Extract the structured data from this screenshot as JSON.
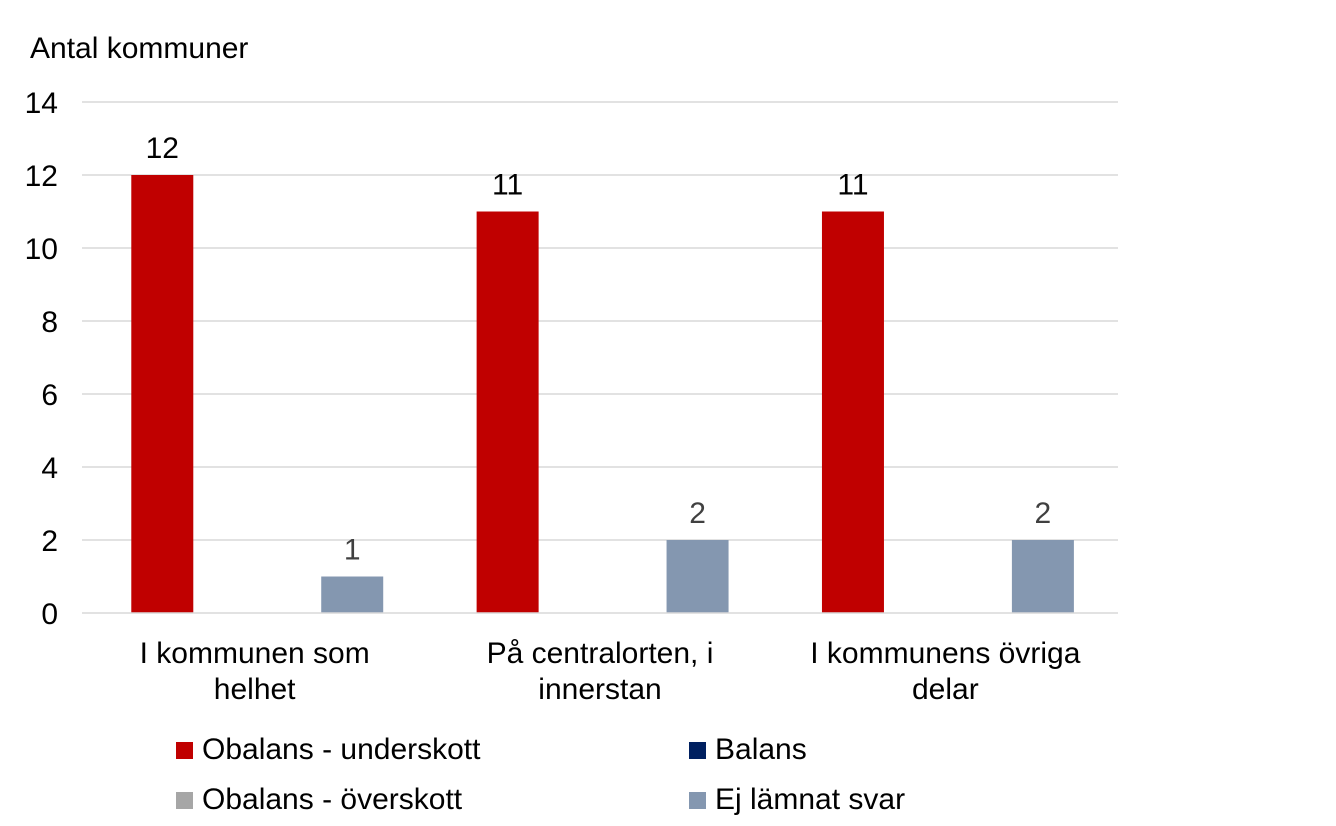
{
  "chart_data": {
    "type": "bar",
    "ylabel": "Antal kommuner",
    "ylim": [
      0,
      14
    ],
    "yticks": [
      0,
      2,
      4,
      6,
      8,
      10,
      12,
      14
    ],
    "grid": true,
    "legend_position": "bottom",
    "categories": [
      [
        "I kommunen som",
        "helhet"
      ],
      [
        "På centralorten, i",
        "innerstan"
      ],
      [
        "I kommunens övriga",
        "delar"
      ]
    ],
    "series": [
      {
        "name": "Obalans - underskott",
        "color": "#c00000",
        "values": [
          12,
          11,
          11
        ]
      },
      {
        "name": "Balans",
        "color": "#002060",
        "values": [
          0,
          0,
          0
        ]
      },
      {
        "name": "Obalans - överskott",
        "color": "#a6a6a6",
        "values": [
          0,
          0,
          0
        ]
      },
      {
        "name": "Ej lämnat svar",
        "color": "#8497b0",
        "values": [
          1,
          2,
          2
        ]
      }
    ],
    "data_labels": [
      {
        "series": 0,
        "category": 0,
        "text": "12"
      },
      {
        "series": 0,
        "category": 1,
        "text": "11"
      },
      {
        "series": 0,
        "category": 2,
        "text": "11"
      },
      {
        "series": 3,
        "category": 0,
        "text": "1"
      },
      {
        "series": 3,
        "category": 1,
        "text": "2"
      },
      {
        "series": 3,
        "category": 2,
        "text": "2"
      }
    ]
  }
}
